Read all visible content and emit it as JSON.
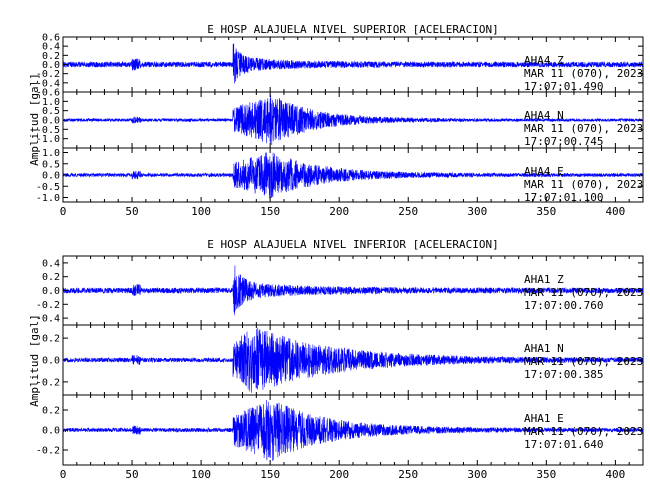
{
  "chart_data": [
    {
      "type": "line",
      "title": "E HOSP ALAJUELA NIVEL SUPERIOR [ACELERACION]",
      "ylabel": "Amplitud [gal]",
      "xlim": [
        0,
        420
      ],
      "xticks": [
        "0",
        "50",
        "100",
        "150",
        "200",
        "250",
        "300",
        "350",
        "400"
      ],
      "line_color": "#0000ff",
      "series": [
        {
          "station": "AHA4",
          "component": "Z",
          "date": "MAR 11 (070), 2023",
          "time": "17:07:01.490",
          "ylim": [
            -0.6,
            0.6
          ],
          "yticks": [
            "0.6",
            "0.4",
            "0.2",
            "0.0",
            "-0.2",
            "-0.4",
            "-0.6"
          ],
          "envelope": {
            "noise": 0.06,
            "arrival_s": 123,
            "peak": 0.45,
            "shape": "impulsive",
            "decay_s": 40
          }
        },
        {
          "station": "AHA4",
          "component": "N",
          "date": "MAR 11 (070), 2023",
          "time": "17:07:00.745",
          "ylim": [
            -1.5,
            1.5
          ],
          "yticks": [
            "1.0",
            "0.5",
            "0.0",
            "-0.5",
            "-1.0"
          ],
          "envelope": {
            "noise": 0.08,
            "arrival_s": 123,
            "peak": 1.3,
            "shape": "burst",
            "peak_s": 152,
            "decay_s": 30
          }
        },
        {
          "station": "AHA4",
          "component": "E",
          "date": "MAR 11 (070), 2023",
          "time": "17:07:01.100",
          "ylim": [
            -1.2,
            1.2
          ],
          "yticks": [
            "1.0",
            "0.5",
            "0.0",
            "-0.5",
            "-1.0"
          ],
          "envelope": {
            "noise": 0.08,
            "arrival_s": 123,
            "peak": 1.0,
            "shape": "burst",
            "peak_s": 150,
            "decay_s": 35
          }
        }
      ],
      "xlabel": ""
    },
    {
      "type": "line",
      "title": "E HOSP ALAJUELA NIVEL INFERIOR [ACELERACION]",
      "ylabel": "Amplitud [gal]",
      "xlim": [
        0,
        420
      ],
      "xticks": [
        "0",
        "50",
        "100",
        "150",
        "200",
        "250",
        "300",
        "350",
        "400"
      ],
      "line_color": "#0000ff",
      "series": [
        {
          "station": "AHA1",
          "component": "Z",
          "date": "MAR 11 (070), 2023",
          "time": "17:07:00.760",
          "ylim": [
            -0.5,
            0.5
          ],
          "yticks": [
            "0.4",
            "0.2",
            "0.0",
            "-0.2",
            "-0.4"
          ],
          "envelope": {
            "noise": 0.04,
            "arrival_s": 123,
            "peak": 0.4,
            "shape": "impulsive",
            "decay_s": 45
          }
        },
        {
          "station": "AHA1",
          "component": "N",
          "date": "MAR 11 (070), 2023",
          "time": "17:07:00.385",
          "ylim": [
            -0.32,
            0.32
          ],
          "yticks": [
            "0.2",
            "0.0",
            "-0.2"
          ],
          "envelope": {
            "noise": 0.02,
            "arrival_s": 123,
            "peak": 0.3,
            "shape": "burst",
            "peak_s": 138,
            "decay_s": 55
          }
        },
        {
          "station": "AHA1",
          "component": "E",
          "date": "MAR 11 (070), 2023",
          "time": "17:07:01.640",
          "ylim": [
            -0.35,
            0.35
          ],
          "yticks": [
            "0.2",
            "0.0",
            "-0.2"
          ],
          "envelope": {
            "noise": 0.02,
            "arrival_s": 123,
            "peak": 0.3,
            "shape": "burst",
            "peak_s": 150,
            "decay_s": 40
          }
        }
      ],
      "xlabel": ""
    }
  ]
}
